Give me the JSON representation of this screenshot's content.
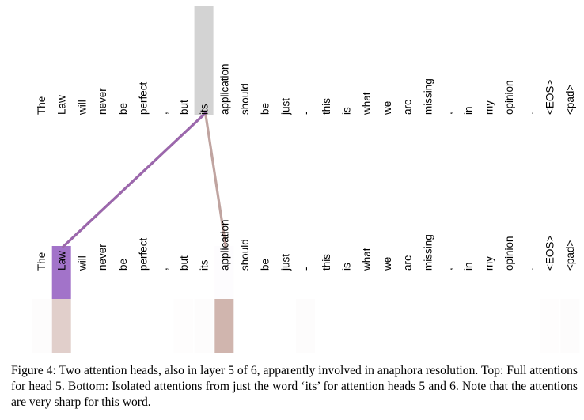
{
  "figure": {
    "tokens": [
      "The",
      "Law",
      "will",
      "never",
      "be",
      "perfect",
      ",",
      "but",
      "its",
      "application",
      "should",
      "be",
      "just",
      "-",
      "this",
      "is",
      "what",
      "we",
      "are",
      "missing",
      ",",
      "in",
      "my",
      "opinion",
      ".",
      "<EOS>",
      "<pad>"
    ],
    "query_token_index": 8,
    "heads": [
      {
        "head": 5,
        "color": "#a070c8",
        "line_color": "#9b67ad",
        "weights": [
          0,
          0.98,
          0,
          0,
          0,
          0,
          0,
          0,
          0,
          0.02,
          0,
          0,
          0,
          0,
          0,
          0,
          0,
          0,
          0,
          0,
          0,
          0,
          0,
          0,
          0,
          0,
          0
        ]
      },
      {
        "head": 6,
        "color": "#c8a8a0",
        "line_color": "#c0a4a0",
        "weights": [
          0.03,
          0.55,
          0,
          0,
          0,
          0,
          0,
          0.02,
          0.03,
          0.85,
          0,
          0,
          0,
          0.03,
          0,
          0,
          0,
          0,
          0,
          0,
          0,
          0,
          0,
          0,
          0,
          0.02,
          0.03
        ]
      }
    ],
    "colors": {
      "query_highlight": "#d3d3d3",
      "text": "#000000"
    }
  },
  "caption": "Figure 4: Two attention heads, also in layer 5 of 6, apparently involved in anaphora resolution. Top: Full attentions for head 5. Bottom: Isolated attentions from just the word ‘its’ for attention heads 5 and 6. Note that the attentions are very sharp for this word."
}
